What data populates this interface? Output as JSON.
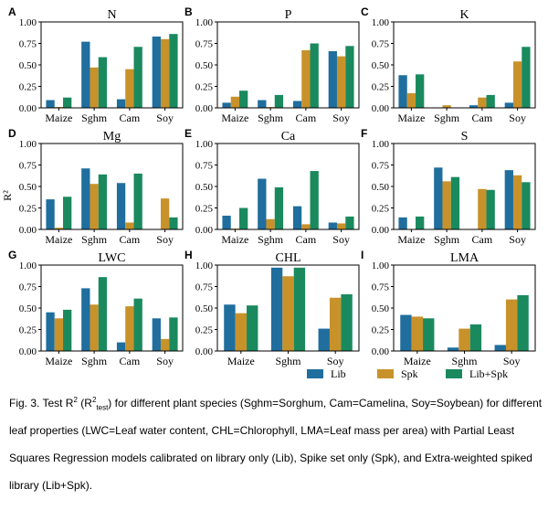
{
  "chart_data": {
    "type": "bar",
    "ylabel": "R²",
    "ylim": [
      0,
      1.0
    ],
    "yticks": [
      "0.00",
      "0.25",
      "0.50",
      "0.75",
      "1.00"
    ],
    "series_names": [
      "Lib",
      "Spk",
      "Lib+Spk"
    ],
    "colors": [
      "#1f6e9e",
      "#c8922b",
      "#1a8a5e"
    ],
    "panels": [
      {
        "letter": "A",
        "title": "N",
        "categories": [
          "Maize",
          "Sghm",
          "Cam",
          "Soy"
        ],
        "values": [
          [
            0.09,
            0.77,
            0.1,
            0.83
          ],
          [
            0.01,
            0.47,
            0.45,
            0.8
          ],
          [
            0.12,
            0.59,
            0.71,
            0.86
          ]
        ]
      },
      {
        "letter": "B",
        "title": "P",
        "categories": [
          "Maize",
          "Sghm",
          "Cam",
          "Soy"
        ],
        "values": [
          [
            0.06,
            0.09,
            0.08,
            0.66
          ],
          [
            0.13,
            0.01,
            0.67,
            0.6
          ],
          [
            0.2,
            0.15,
            0.75,
            0.72
          ]
        ]
      },
      {
        "letter": "C",
        "title": "K",
        "categories": [
          "Maize",
          "Sghm",
          "Cam",
          "Soy"
        ],
        "values": [
          [
            0.38,
            0.0,
            0.03,
            0.06
          ],
          [
            0.17,
            0.03,
            0.12,
            0.54
          ],
          [
            0.39,
            0.0,
            0.15,
            0.71
          ]
        ]
      },
      {
        "letter": "D",
        "title": "Mg",
        "categories": [
          "Maize",
          "Sghm",
          "Cam",
          "Soy"
        ],
        "values": [
          [
            0.35,
            0.71,
            0.54,
            0.0
          ],
          [
            0.02,
            0.53,
            0.08,
            0.36
          ],
          [
            0.38,
            0.64,
            0.65,
            0.14
          ]
        ]
      },
      {
        "letter": "E",
        "title": "Ca",
        "categories": [
          "Maize",
          "Sghm",
          "Cam",
          "Soy"
        ],
        "values": [
          [
            0.16,
            0.59,
            0.27,
            0.08
          ],
          [
            0.01,
            0.12,
            0.06,
            0.07
          ],
          [
            0.25,
            0.49,
            0.68,
            0.15
          ]
        ]
      },
      {
        "letter": "F",
        "title": "S",
        "categories": [
          "Maize",
          "Sghm",
          "Cam",
          "Soy"
        ],
        "values": [
          [
            0.14,
            0.72,
            0.0,
            0.69
          ],
          [
            0.0,
            0.56,
            0.47,
            0.63
          ],
          [
            0.15,
            0.61,
            0.46,
            0.55
          ]
        ]
      },
      {
        "letter": "G",
        "title": "LWC",
        "categories": [
          "Maize",
          "Sghm",
          "Cam",
          "Soy"
        ],
        "values": [
          [
            0.45,
            0.73,
            0.1,
            0.38
          ],
          [
            0.38,
            0.54,
            0.52,
            0.14
          ],
          [
            0.48,
            0.86,
            0.61,
            0.39
          ]
        ]
      },
      {
        "letter": "H",
        "title": "CHL",
        "categories": [
          "Maize",
          "Sghm",
          "Soy"
        ],
        "values": [
          [
            0.54,
            0.97,
            0.26
          ],
          [
            0.44,
            0.87,
            0.62
          ],
          [
            0.53,
            0.97,
            0.66
          ]
        ]
      },
      {
        "letter": "I",
        "title": "LMA",
        "categories": [
          "Maize",
          "Sghm",
          "Soy"
        ],
        "values": [
          [
            0.42,
            0.04,
            0.07
          ],
          [
            0.4,
            0.26,
            0.6
          ],
          [
            0.38,
            0.31,
            0.65
          ]
        ]
      }
    ]
  },
  "caption": {
    "part1": "Fig. 3. Test R",
    "sup1": "2",
    "part2": " (R",
    "sup2": "2",
    "sub2": "test",
    "part3": ") for different plant species (Sghm=Sorghum, Cam=Camelina, Soy=Soybean) for different leaf properties (LWC=Leaf water content, CHL=Chlorophyll, LMA=Leaf mass per area) with Partial Least Squares Regression models calibrated on library only (Lib), Spike set only (Spk), and Extra-weighted spiked library (Lib+Spk)."
  }
}
